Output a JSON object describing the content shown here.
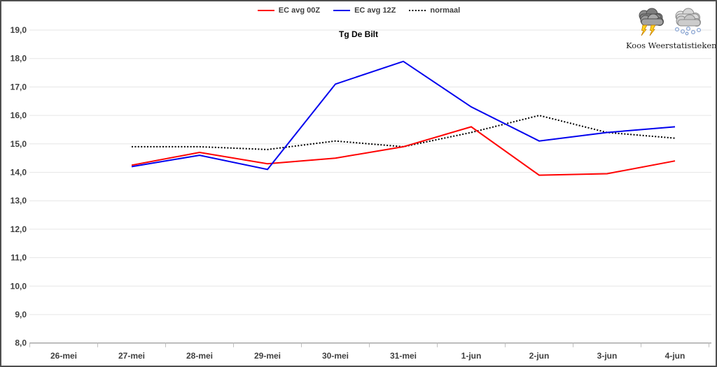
{
  "chart_data": {
    "type": "line",
    "title": "Tg De Bilt",
    "categories": [
      "26-mei",
      "27-mei",
      "28-mei",
      "29-mei",
      "30-mei",
      "31-mei",
      "1-jun",
      "2-jun",
      "3-jun",
      "4-jun"
    ],
    "y_axis": {
      "min": 8,
      "max": 19,
      "step": 1,
      "tick_labels": [
        "8,0",
        "9,0",
        "10,0",
        "11,0",
        "12,0",
        "13,0",
        "14,0",
        "15,0",
        "16,0",
        "17,0",
        "18,0",
        "19,0"
      ]
    },
    "grid": "horizontal",
    "legend_position": "top-center",
    "series": [
      {
        "name": "EC avg 00Z",
        "color": "#ff0000",
        "style": "solid",
        "values": [
          null,
          14.25,
          14.7,
          14.3,
          14.5,
          14.9,
          15.6,
          13.9,
          13.95,
          14.4
        ]
      },
      {
        "name": "EC avg 12Z",
        "color": "#0000ee",
        "style": "solid",
        "values": [
          null,
          14.2,
          14.6,
          14.1,
          17.1,
          17.9,
          16.3,
          15.1,
          15.4,
          15.6
        ]
      },
      {
        "name": "normaal",
        "color": "#000000",
        "style": "dotted",
        "values": [
          null,
          14.9,
          14.9,
          14.8,
          15.1,
          14.9,
          15.4,
          16.0,
          15.4,
          15.2
        ]
      }
    ]
  },
  "branding": {
    "name": "Koos Weerstatistieken",
    "icons": [
      "storm-cloud-icon",
      "hail-cloud-icon"
    ]
  },
  "colors": {
    "gridline": "#e6e6e6",
    "axis_line": "#7f7f7f",
    "tick_mark": "#bfbfbf",
    "tick_text": "#3f3f3f"
  }
}
